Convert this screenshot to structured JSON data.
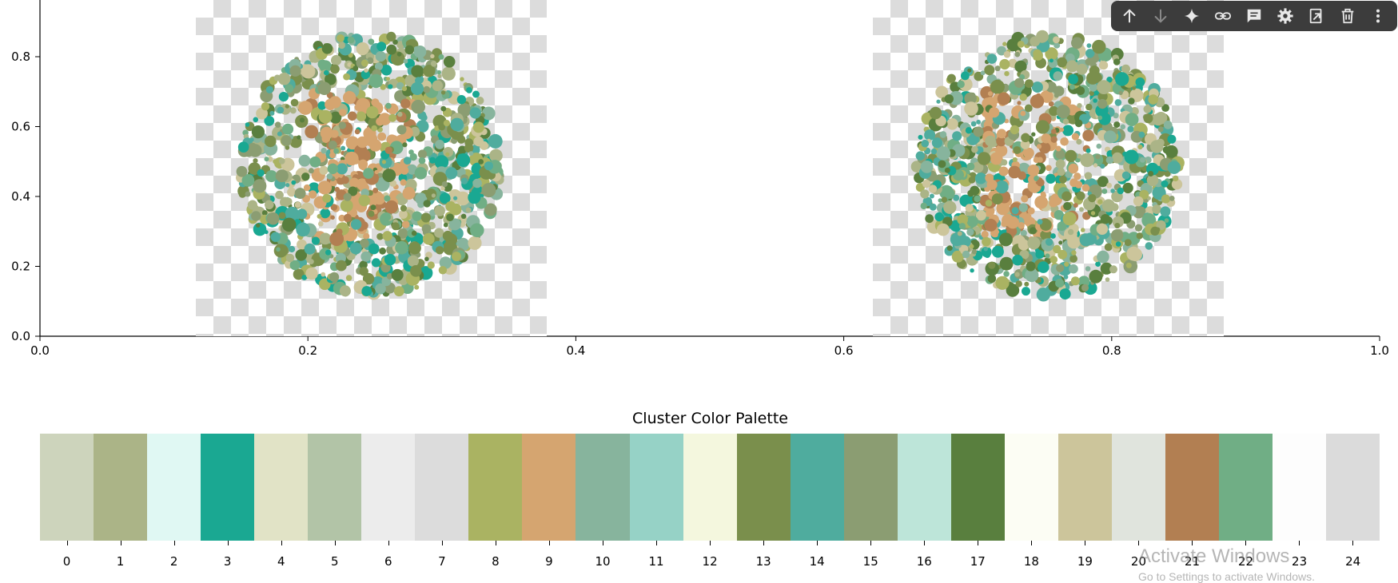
{
  "toolbar": {
    "items": [
      {
        "name": "move-up",
        "glyph": "↑"
      },
      {
        "name": "move-down",
        "glyph": "↓"
      },
      {
        "name": "gemini",
        "glyph": "✦"
      },
      {
        "name": "link",
        "glyph": "link"
      },
      {
        "name": "comment",
        "glyph": "comment"
      },
      {
        "name": "settings",
        "glyph": "gear"
      },
      {
        "name": "mirror",
        "glyph": "mirror"
      },
      {
        "name": "delete",
        "glyph": "trash"
      },
      {
        "name": "more",
        "glyph": "⋮"
      }
    ]
  },
  "top_plot": {
    "x_ticks": [
      "0.0",
      "0.2",
      "0.4",
      "0.6",
      "0.8",
      "1.0"
    ],
    "y_ticks": [
      "0.0",
      "0.2",
      "0.4",
      "0.6",
      "0.8"
    ]
  },
  "palette": {
    "title": "Cluster Color Palette",
    "colors": [
      "#cdd4bc",
      "#abb487",
      "#e0f8f3",
      "#1aa892",
      "#e1e3c6",
      "#b2c4a7",
      "#ececec",
      "#dcdcdc",
      "#aab362",
      "#d5a570",
      "#87b49d",
      "#96d2c6",
      "#f4f7de",
      "#7a8f4c",
      "#4fac9e",
      "#8b9d72",
      "#bde5d9",
      "#597f3e",
      "#fcfdf4",
      "#ccc59b",
      "#e0e4dd",
      "#b27f52",
      "#70ae85",
      "#fdfdfd",
      "#dbdbdb"
    ],
    "labels": [
      "0",
      "1",
      "2",
      "3",
      "4",
      "5",
      "6",
      "7",
      "8",
      "9",
      "10",
      "11",
      "12",
      "13",
      "14",
      "15",
      "16",
      "17",
      "18",
      "19",
      "20",
      "21",
      "22",
      "23",
      "24"
    ]
  },
  "watermark": {
    "line1": "Activate Windows",
    "line2": "Go to Settings to activate Windows."
  }
}
